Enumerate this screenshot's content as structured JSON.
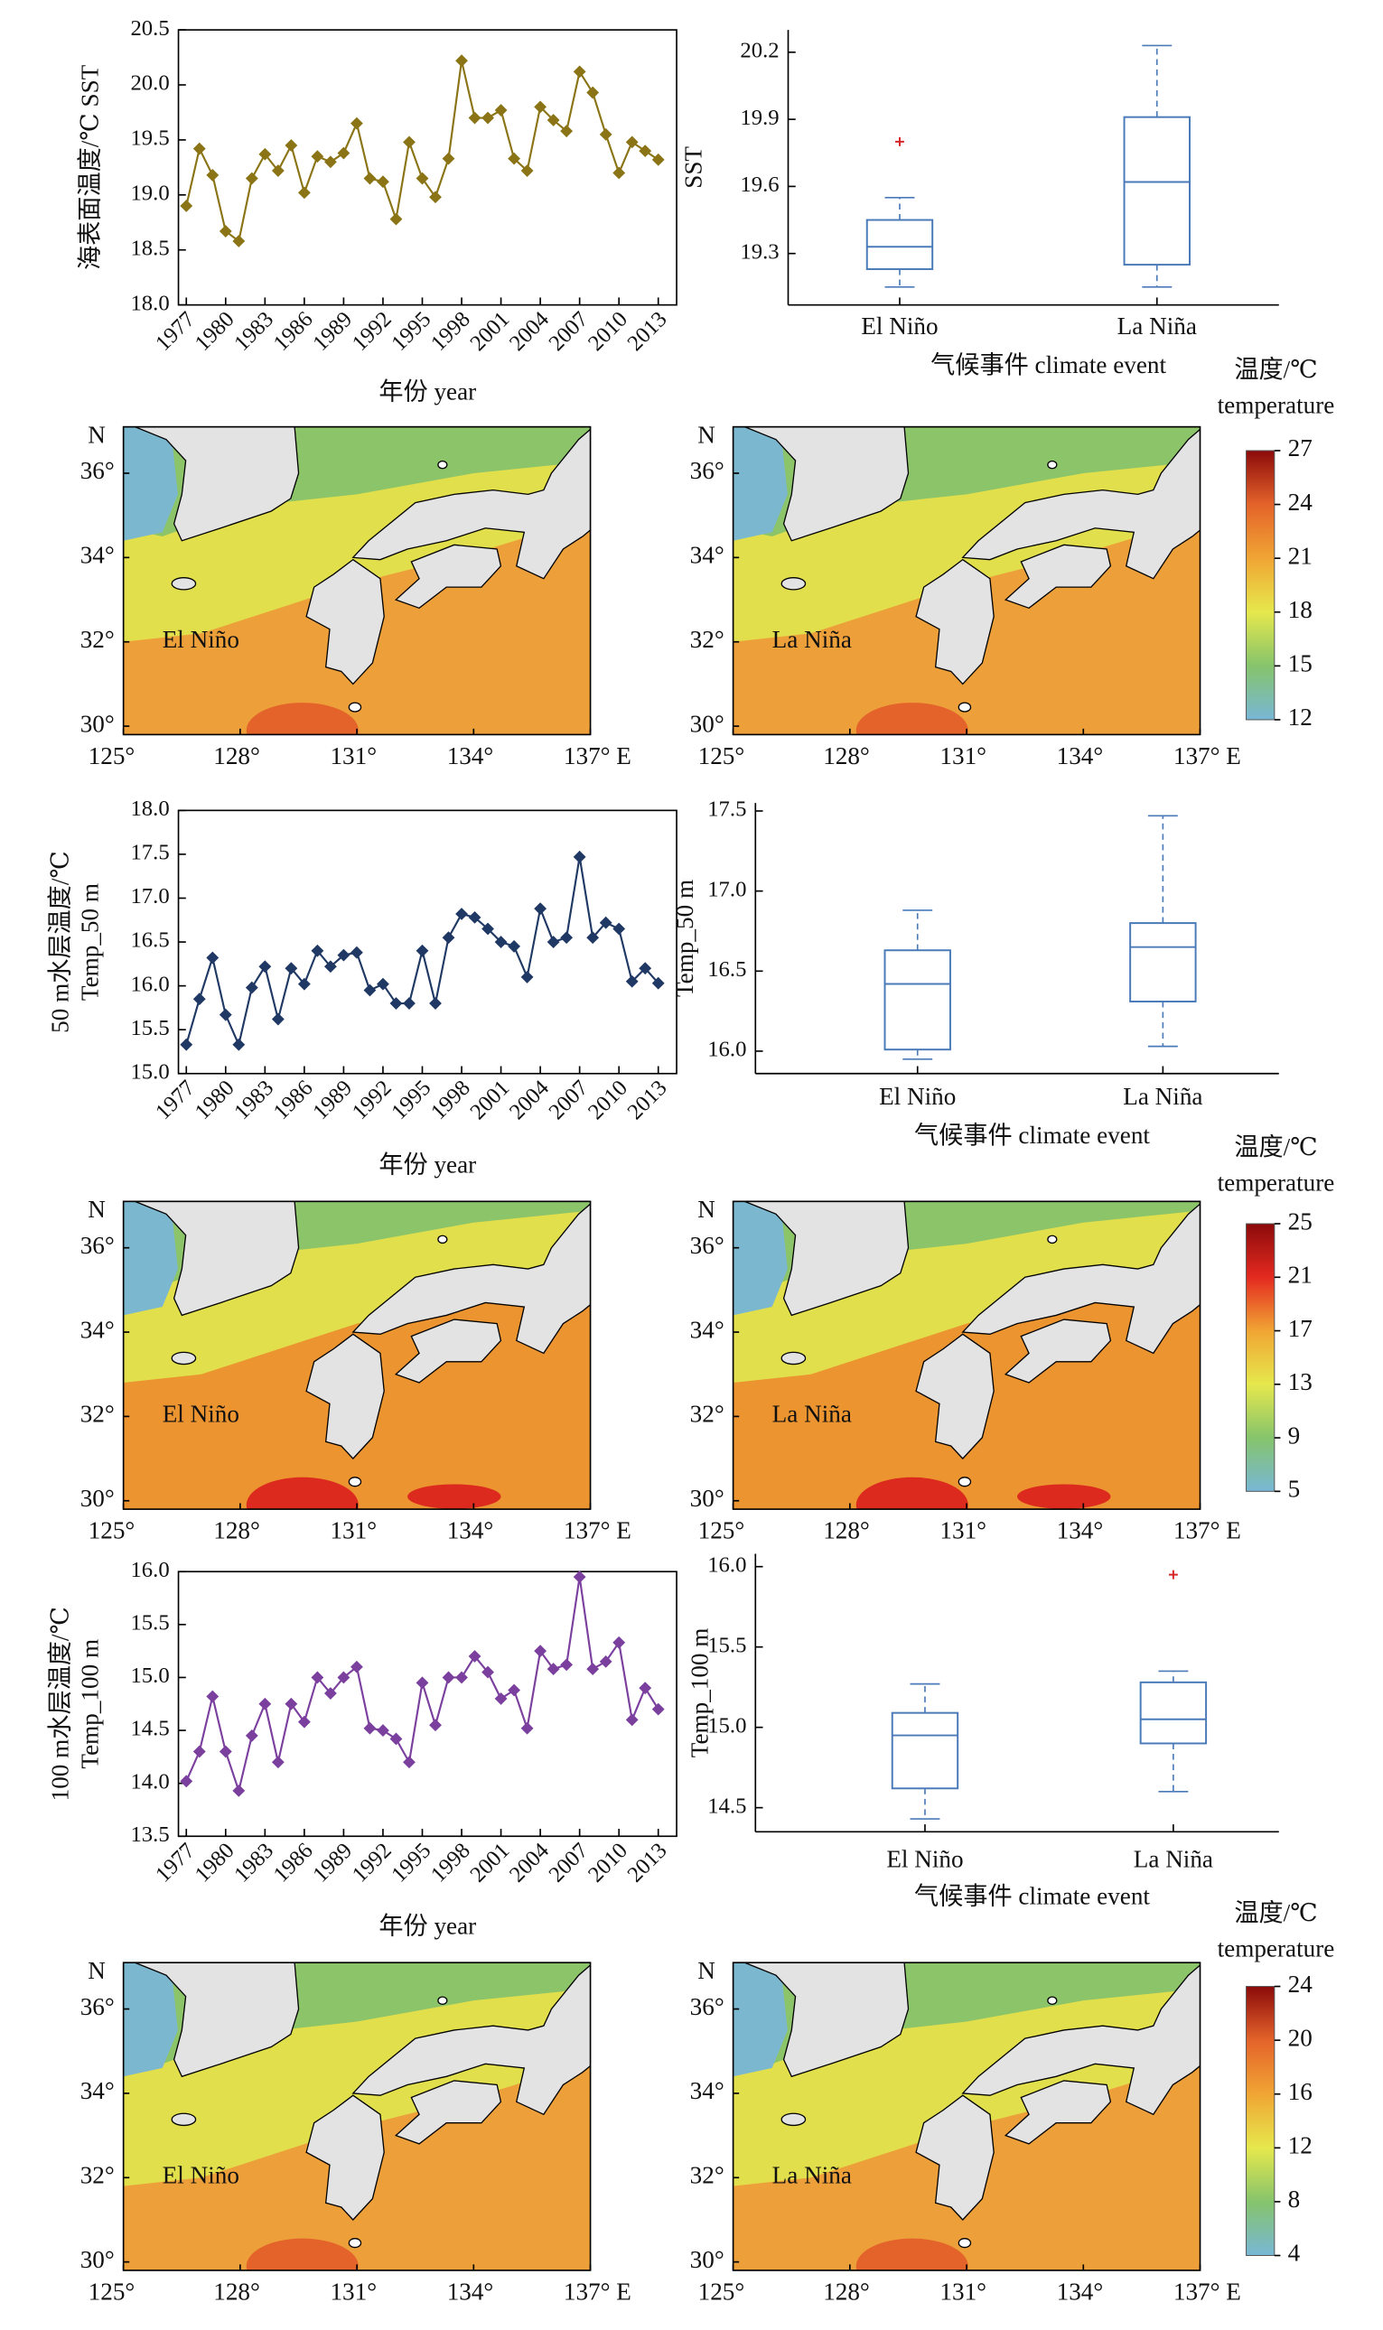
{
  "chart_data": [
    {
      "type": "line",
      "ylabel": [
        "海表面温度/℃ SST"
      ],
      "xlabel": "年份 year",
      "color": "#8a7415",
      "x": [
        1977,
        1978,
        1979,
        1980,
        1981,
        1982,
        1983,
        1984,
        1985,
        1986,
        1987,
        1988,
        1989,
        1990,
        1991,
        1992,
        1993,
        1994,
        1995,
        1996,
        1997,
        1998,
        1999,
        2000,
        2001,
        2002,
        2003,
        2004,
        2005,
        2006,
        2007,
        2008,
        2009,
        2010,
        2011,
        2012,
        2013
      ],
      "values": [
        18.9,
        19.42,
        19.18,
        18.67,
        18.58,
        19.15,
        19.37,
        19.22,
        19.45,
        19.02,
        19.35,
        19.3,
        19.38,
        19.65,
        19.15,
        19.12,
        18.78,
        19.48,
        19.15,
        18.98,
        19.33,
        20.22,
        19.7,
        19.7,
        19.77,
        19.33,
        19.22,
        19.8,
        19.68,
        19.58,
        20.12,
        19.93,
        19.55,
        19.2,
        19.48,
        19.4,
        19.32
      ],
      "xlim": [
        1976.4,
        2014.4
      ],
      "xticks": [
        1977,
        1980,
        1983,
        1986,
        1989,
        1992,
        1995,
        1998,
        2001,
        2004,
        2007,
        2010,
        2013
      ],
      "ylim": [
        18,
        20.5
      ],
      "yticks": [
        {
          "value": 18,
          "label": "18.0"
        },
        18.5,
        {
          "value": 19,
          "label": "19.0"
        },
        19.5,
        {
          "value": 20,
          "label": "20.0"
        },
        20.5
      ]
    },
    {
      "type": "box",
      "ylabel": [
        "SST"
      ],
      "xlabel": "气候事件 climate event",
      "color": "#4a7ab8",
      "outlier_color": "#d62728",
      "categories": [
        "El Niño",
        "La Niña"
      ],
      "boxes": [
        {
          "whisker_low": 19.15,
          "q1": 19.23,
          "median": 19.33,
          "q3": 19.45,
          "whisker_high": 19.55,
          "outliers": [
            19.8
          ]
        },
        {
          "whisker_low": 19.15,
          "q1": 19.25,
          "median": 19.62,
          "q3": 19.91,
          "whisker_high": 20.23
        }
      ],
      "ylim": [
        19.07,
        20.3
      ],
      "yticks": [
        19.3,
        19.6,
        19.9,
        20.2
      ]
    },
    {
      "type": "line",
      "ylabel": [
        "50 m水层温度/℃",
        "Temp_50 m"
      ],
      "xlabel": "年份 year",
      "color": "#1f3864",
      "x": [
        1977,
        1978,
        1979,
        1980,
        1981,
        1982,
        1983,
        1984,
        1985,
        1986,
        1987,
        1988,
        1989,
        1990,
        1991,
        1992,
        1993,
        1994,
        1995,
        1996,
        1997,
        1998,
        1999,
        2000,
        2001,
        2002,
        2003,
        2004,
        2005,
        2006,
        2007,
        2008,
        2009,
        2010,
        2011,
        2012,
        2013
      ],
      "values": [
        15.33,
        15.85,
        16.32,
        15.67,
        15.33,
        15.98,
        16.22,
        15.62,
        16.2,
        16.02,
        16.4,
        16.22,
        16.35,
        16.38,
        15.95,
        16.02,
        15.8,
        15.8,
        16.4,
        15.8,
        16.55,
        16.82,
        16.78,
        16.65,
        16.5,
        16.45,
        16.1,
        16.88,
        16.5,
        16.55,
        17.47,
        16.55,
        16.72,
        16.65,
        16.05,
        16.2,
        16.03
      ],
      "xlim": [
        1976.4,
        2014.4
      ],
      "xticks": [
        1977,
        1980,
        1983,
        1986,
        1989,
        1992,
        1995,
        1998,
        2001,
        2004,
        2007,
        2010,
        2013
      ],
      "ylim": [
        15,
        18
      ],
      "yticks": [
        {
          "value": 15,
          "label": "15.0"
        },
        15.5,
        {
          "value": 16,
          "label": "16.0"
        },
        16.5,
        {
          "value": 17,
          "label": "17.0"
        },
        17.5,
        {
          "value": 18,
          "label": "18.0"
        }
      ]
    },
    {
      "type": "box",
      "ylabel": [
        "Temp_50 m"
      ],
      "xlabel": "气候事件 climate event",
      "color": "#4a7ab8",
      "outlier_color": "#d62728",
      "categories": [
        "El Niño",
        "La Niña"
      ],
      "boxes": [
        {
          "whisker_low": 15.95,
          "q1": 16.01,
          "median": 16.42,
          "q3": 16.63,
          "whisker_high": 16.88
        },
        {
          "whisker_low": 16.03,
          "q1": 16.31,
          "median": 16.65,
          "q3": 16.8,
          "whisker_high": 17.47
        }
      ],
      "ylim": [
        15.86,
        17.55
      ],
      "yticks": [
        {
          "value": 16,
          "label": "16.0"
        },
        16.5,
        {
          "value": 17,
          "label": "17.0"
        },
        17.5
      ]
    },
    {
      "type": "line",
      "ylabel": [
        "100 m水层温度/℃",
        "Temp_100 m"
      ],
      "xlabel": "年份 year",
      "color": "#7b3f9e",
      "x": [
        1977,
        1978,
        1979,
        1980,
        1981,
        1982,
        1983,
        1984,
        1985,
        1986,
        1987,
        1988,
        1989,
        1990,
        1991,
        1992,
        1993,
        1994,
        1995,
        1996,
        1997,
        1998,
        1999,
        2000,
        2001,
        2002,
        2003,
        2004,
        2005,
        2006,
        2007,
        2008,
        2009,
        2010,
        2011,
        2012,
        2013
      ],
      "values": [
        14.02,
        14.3,
        14.82,
        14.3,
        13.93,
        14.45,
        14.75,
        14.2,
        14.75,
        14.58,
        15.0,
        14.85,
        15.0,
        15.1,
        14.52,
        14.5,
        14.42,
        14.2,
        14.95,
        14.55,
        15.0,
        15.0,
        15.2,
        15.05,
        14.8,
        14.88,
        14.52,
        15.25,
        15.08,
        15.12,
        15.95,
        15.08,
        15.15,
        15.33,
        14.6,
        14.9,
        14.7
      ],
      "xlim": [
        1976.4,
        2014.4
      ],
      "xticks": [
        1977,
        1980,
        1983,
        1986,
        1989,
        1992,
        1995,
        1998,
        2001,
        2004,
        2007,
        2010,
        2013
      ],
      "ylim": [
        13.5,
        16
      ],
      "yticks": [
        13.5,
        {
          "value": 14,
          "label": "14.0"
        },
        14.5,
        {
          "value": 15,
          "label": "15.0"
        },
        15.5,
        {
          "value": 16,
          "label": "16.0"
        }
      ]
    },
    {
      "type": "box",
      "ylabel": [
        "Temp_100 m"
      ],
      "xlabel": "气候事件 climate event",
      "color": "#4a7ab8",
      "outlier_color": "#d62728",
      "categories": [
        "El Niño",
        "La Niña"
      ],
      "boxes": [
        {
          "whisker_low": 14.43,
          "q1": 14.62,
          "median": 14.95,
          "q3": 15.09,
          "whisker_high": 15.27
        },
        {
          "whisker_low": 14.6,
          "q1": 14.9,
          "median": 15.05,
          "q3": 15.28,
          "whisker_high": 15.35,
          "outliers": [
            15.95
          ]
        }
      ],
      "ylim": [
        14.35,
        16.08
      ],
      "yticks": [
        14.5,
        {
          "value": 15,
          "label": "15.0"
        },
        15.5,
        {
          "value": 16,
          "label": "16.0"
        }
      ]
    }
  ],
  "maps": [
    {
      "label": "El Niño"
    },
    {
      "label": "La Niña"
    },
    {
      "label": "El Niño"
    },
    {
      "label": "La Niña"
    },
    {
      "label": "El Niño"
    },
    {
      "label": "La Niña"
    }
  ],
  "map_axes": {
    "north": "N",
    "xlim": [
      125,
      137
    ],
    "ylim": [
      29.8,
      37.1
    ],
    "xticks": [
      {
        "value": 125,
        "label": "125°"
      },
      {
        "value": 128,
        "label": "128°"
      },
      {
        "value": 131,
        "label": "131°"
      },
      {
        "value": 134,
        "label": "134°"
      },
      {
        "value": 137,
        "label": "137° E"
      }
    ],
    "yticks": [
      {
        "value": 30,
        "label": "30°"
      },
      {
        "value": 32,
        "label": "32°"
      },
      {
        "value": 34,
        "label": "34°"
      },
      {
        "value": 36,
        "label": "36°"
      }
    ]
  },
  "colorbars": [
    {
      "title": "温度/℃",
      "subtitle": "temperature",
      "ticks": [
        12,
        15,
        18,
        21,
        24,
        27
      ],
      "colors": [
        "#78b7d6",
        "#86c46c",
        "#e6e84c",
        "#f0a534",
        "#e4632a",
        "#8b0a0a"
      ]
    },
    {
      "title": "温度/℃",
      "subtitle": "temperature",
      "ticks": [
        5,
        9,
        13,
        17,
        21,
        25
      ],
      "colors": [
        "#78b7d6",
        "#86c46c",
        "#e6e84c",
        "#f0a534",
        "#e42a20",
        "#8b0a0a"
      ]
    },
    {
      "title": "温度/℃",
      "subtitle": "temperature",
      "ticks": [
        4,
        8,
        12,
        16,
        20,
        24
      ],
      "colors": [
        "#78b7d6",
        "#86c46c",
        "#e6e84c",
        "#f0a534",
        "#e4632a",
        "#8b0a0a"
      ]
    }
  ]
}
